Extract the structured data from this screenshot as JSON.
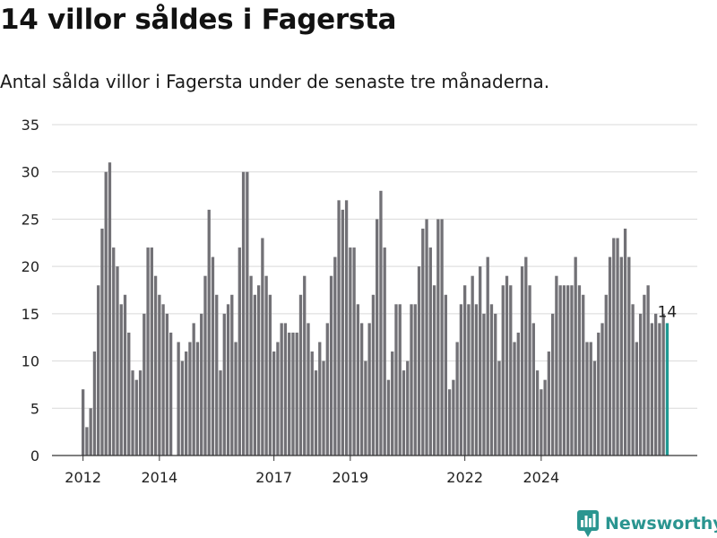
{
  "colors": {
    "bar": "#727176",
    "highlight": "#1f9a93",
    "grid": "#d9d9d9",
    "brand": "#2a9590"
  },
  "brand": {
    "name": "Newsworthy",
    "icon": "bar-chart-icon"
  },
  "chart_data": {
    "type": "bar",
    "title": "14 villor såldes i Fagersta",
    "subtitle": "Antal sålda villor i Fagersta under de senaste tre månaderna.",
    "xlabel": "",
    "ylabel": "",
    "ylim": [
      0,
      35
    ],
    "yticks": [
      0,
      5,
      10,
      15,
      20,
      25,
      30,
      35
    ],
    "x_start": "2012-01",
    "xticks": [
      {
        "label": "2012",
        "index": 0
      },
      {
        "label": "2014",
        "index": 20
      },
      {
        "label": "2017",
        "index": 50
      },
      {
        "label": "2019",
        "index": 70
      },
      {
        "label": "2022",
        "index": 100
      },
      {
        "label": "2024",
        "index": 120
      }
    ],
    "values": [
      7,
      3,
      5,
      11,
      18,
      24,
      30,
      31,
      22,
      20,
      16,
      17,
      13,
      9,
      8,
      9,
      15,
      22,
      22,
      19,
      17,
      16,
      15,
      13,
      0,
      12,
      10,
      11,
      12,
      14,
      12,
      15,
      19,
      26,
      21,
      17,
      9,
      15,
      16,
      17,
      12,
      22,
      30,
      30,
      19,
      17,
      18,
      23,
      19,
      17,
      11,
      12,
      14,
      14,
      13,
      13,
      13,
      17,
      19,
      14,
      11,
      9,
      12,
      10,
      14,
      19,
      21,
      27,
      26,
      27,
      22,
      22,
      16,
      14,
      10,
      14,
      17,
      25,
      28,
      22,
      8,
      11,
      16,
      16,
      9,
      10,
      16,
      16,
      20,
      24,
      25,
      22,
      18,
      25,
      25,
      17,
      7,
      8,
      12,
      16,
      18,
      16,
      19,
      16,
      20,
      15,
      21,
      16,
      15,
      10,
      18,
      19,
      18,
      12,
      13,
      20,
      21,
      18,
      14,
      9,
      7,
      8,
      11,
      15,
      19,
      18,
      18,
      18,
      18,
      21,
      18,
      17,
      12,
      12,
      10,
      13,
      14,
      17,
      21,
      23,
      23,
      21,
      24,
      21,
      16,
      12,
      15,
      17,
      18,
      14,
      15,
      14,
      15,
      14
    ],
    "highlight": {
      "index": 153,
      "label": "14"
    }
  }
}
